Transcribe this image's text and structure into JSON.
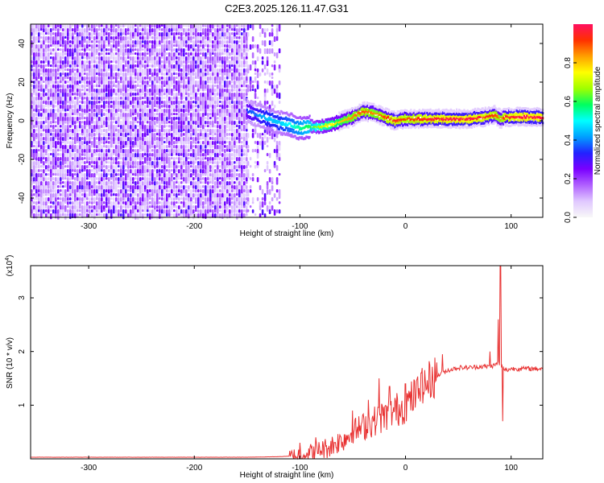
{
  "figure": {
    "title": "C2E3.2025.126.11.47.G31"
  },
  "chart_data": [
    {
      "type": "heatmap",
      "xlabel": "Height of straight line (km)",
      "ylabel": "Frequency (Hz)",
      "xlim": [
        -355,
        130
      ],
      "ylim": [
        -50,
        50
      ],
      "xticks": [
        -300,
        -200,
        -100,
        0,
        100
      ],
      "yticks": [
        -40,
        -20,
        0,
        20,
        40
      ],
      "colorbar": {
        "label": "Normalized spectral amplitude",
        "range": [
          0,
          1
        ],
        "ticks": [
          0.0,
          0.2,
          0.4,
          0.6,
          0.8
        ],
        "tick_labels": [
          "0.0",
          "0.2",
          "0.4",
          "0.6",
          "0.8"
        ],
        "colormap": [
          "#f8f8f8",
          "#e0c8ff",
          "#b060ff",
          "#7a00ff",
          "#2222ff",
          "#00a0ff",
          "#00ffff",
          "#00ff60",
          "#a0ff00",
          "#ffff00",
          "#ffa000",
          "#ff3000",
          "#ff1060"
        ]
      },
      "regions": [
        {
          "name": "noise",
          "x_range": [
            -355,
            -150
          ],
          "freq_range": [
            -50,
            50
          ],
          "amplitude": 0.15
        },
        {
          "name": "sparse-noise",
          "x_range": [
            -150,
            -118
          ],
          "freq_range": [
            -50,
            50
          ],
          "amplitude": 0.1
        }
      ],
      "signal_ridge": {
        "x": [
          -150,
          -140,
          -130,
          -120,
          -110,
          -100,
          -90,
          -80,
          -70,
          -60,
          -50,
          -40,
          -30,
          -20,
          -10,
          0,
          20,
          40,
          60,
          75,
          85,
          90,
          95,
          110,
          130
        ],
        "freq": [
          5,
          3,
          1,
          -1,
          -2,
          -4,
          -3,
          -3,
          -2,
          0,
          2,
          5,
          4,
          2,
          0,
          1,
          1,
          1,
          1,
          2,
          3,
          1,
          2,
          2,
          2
        ],
        "amplitude": [
          0.35,
          0.4,
          0.45,
          0.45,
          0.5,
          0.55,
          0.6,
          0.7,
          0.75,
          0.8,
          0.85,
          0.9,
          0.85,
          0.9,
          0.95,
          0.9,
          0.95,
          0.97,
          0.98,
          0.95,
          0.9,
          0.85,
          0.95,
          0.98,
          0.98
        ]
      },
      "grid": false
    },
    {
      "type": "line",
      "xlabel": "Height of straight line (km)",
      "ylabel": "SNR (10 * v/v)",
      "y_multiplier_label": "(x10",
      "y_multiplier_exp": "4",
      "xlim": [
        -355,
        130
      ],
      "ylim": [
        0,
        3.6
      ],
      "xticks": [
        -300,
        -200,
        -100,
        0,
        100
      ],
      "yticks": [
        1,
        2,
        3
      ],
      "series": [
        {
          "color": "#e83030",
          "x": [
            -355,
            -300,
            -250,
            -200,
            -150,
            -120,
            -110,
            -100,
            -95,
            -90,
            -85,
            -80,
            -75,
            -70,
            -65,
            -60,
            -55,
            -50,
            -45,
            -40,
            -35,
            -30,
            -25,
            -20,
            -15,
            -10,
            -5,
            0,
            5,
            10,
            15,
            20,
            25,
            30,
            35,
            40,
            50,
            60,
            70,
            80,
            85,
            88,
            90,
            92,
            95,
            100,
            110,
            120,
            130
          ],
          "values": [
            0.03,
            0.03,
            0.03,
            0.03,
            0.03,
            0.04,
            0.05,
            0.08,
            0.1,
            0.12,
            0.14,
            0.18,
            0.2,
            0.25,
            0.3,
            0.35,
            0.42,
            0.5,
            0.55,
            0.6,
            0.65,
            0.7,
            0.75,
            0.8,
            0.85,
            0.9,
            0.95,
            1.0,
            1.1,
            1.2,
            1.3,
            1.4,
            1.5,
            1.55,
            1.6,
            1.65,
            1.7,
            1.7,
            1.72,
            1.72,
            1.75,
            1.8,
            1.75,
            1.7,
            1.65,
            1.68,
            1.68,
            1.68,
            1.68
          ],
          "spikes": [
            {
              "x": -100,
              "value": 0.3
            },
            {
              "x": -85,
              "value": 0.4
            },
            {
              "x": -50,
              "value": 0.9
            },
            {
              "x": -35,
              "value": 1.1
            },
            {
              "x": -25,
              "value": 1.5
            },
            {
              "x": -15,
              "value": 1.35
            },
            {
              "x": 0,
              "value": 1.4
            },
            {
              "x": 15,
              "value": 1.6
            },
            {
              "x": 35,
              "value": 1.95
            },
            {
              "x": 80,
              "value": 2.0
            },
            {
              "x": 88,
              "value": 2.6
            },
            {
              "x": 90,
              "value": 3.6
            },
            {
              "x": 92,
              "value": 0.7
            }
          ]
        }
      ],
      "grid": false
    }
  ]
}
